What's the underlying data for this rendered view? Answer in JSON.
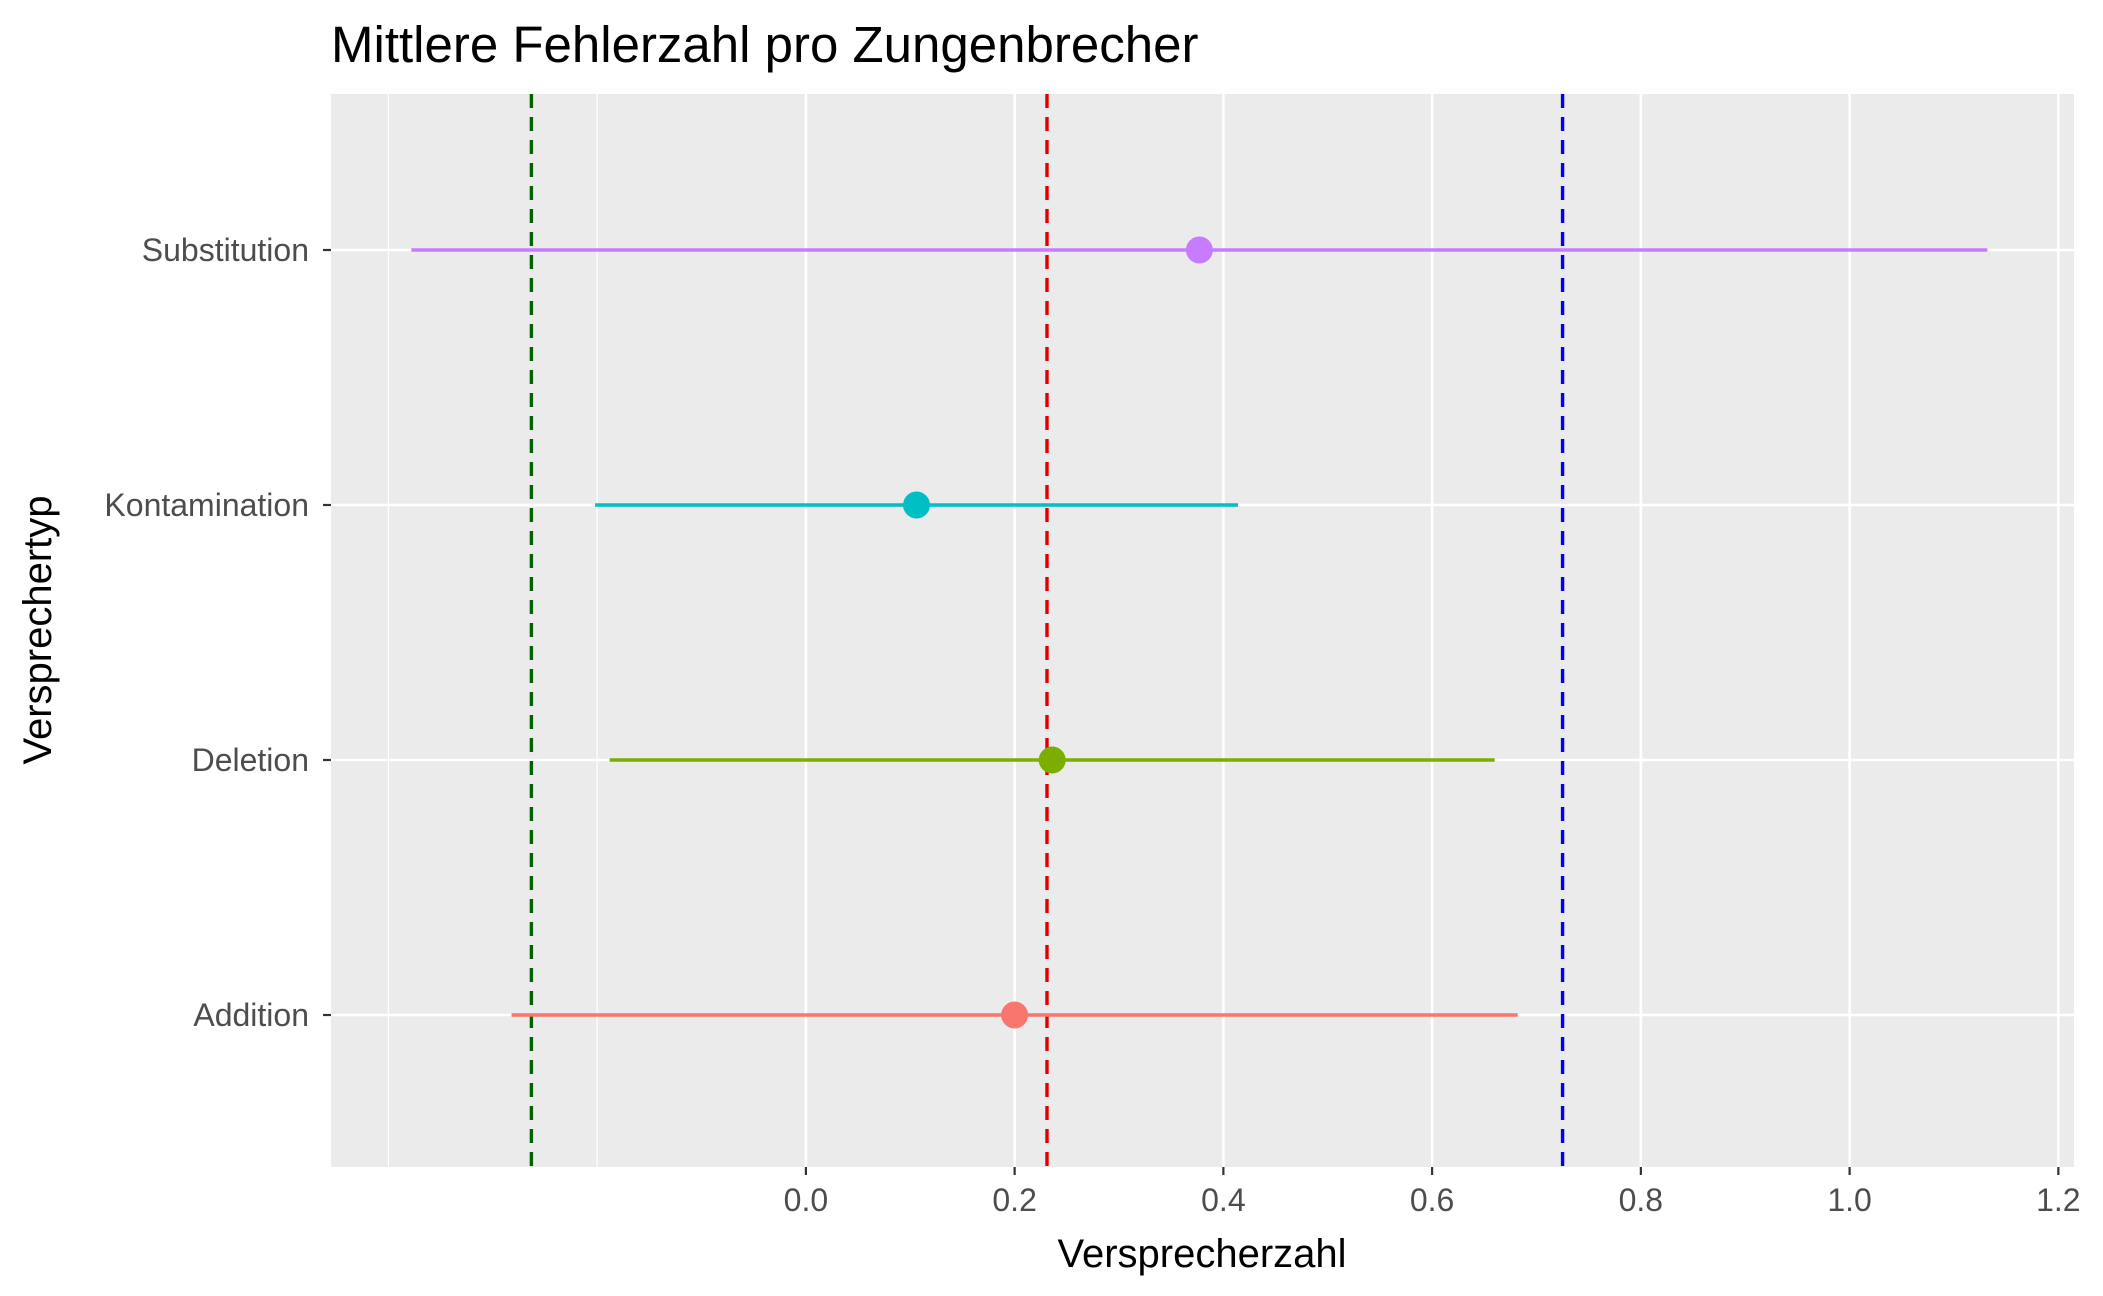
{
  "chart_data": {
    "type": "scatter",
    "title": "Mittlere Fehlerzahl pro Zungenbrecher",
    "xlabel": "Versprecherzahl",
    "ylabel": "Versprechertyp",
    "xlim": [
      -0.455,
      1.215
    ],
    "x_ticks": [
      "0.0",
      "0.2",
      "0.4",
      "0.6",
      "0.8",
      "1.0",
      "1.2"
    ],
    "categories": [
      "Substitution",
      "Kontamination",
      "Deletion",
      "Addition"
    ],
    "series": [
      {
        "category": "Substitution",
        "mean": 0.377,
        "lower": -0.378,
        "upper": 1.132,
        "color": "#C77CFF"
      },
      {
        "category": "Kontamination",
        "mean": 0.106,
        "lower": -0.202,
        "upper": 0.414,
        "color": "#00BFC4"
      },
      {
        "category": "Deletion",
        "mean": 0.236,
        "lower": -0.188,
        "upper": 0.66,
        "color": "#7CAE00"
      },
      {
        "category": "Addition",
        "mean": 0.2,
        "lower": -0.282,
        "upper": 0.682,
        "color": "#F8766D"
      }
    ],
    "reference_lines": [
      {
        "x": -0.263,
        "color": "#006400",
        "style": "dashed"
      },
      {
        "x": 0.231,
        "color": "#E00000",
        "style": "dashed"
      },
      {
        "x": 0.725,
        "color": "#0000EE",
        "style": "dashed"
      }
    ],
    "panel_background": "#EBEBEB",
    "grid": true,
    "legend": "none"
  }
}
